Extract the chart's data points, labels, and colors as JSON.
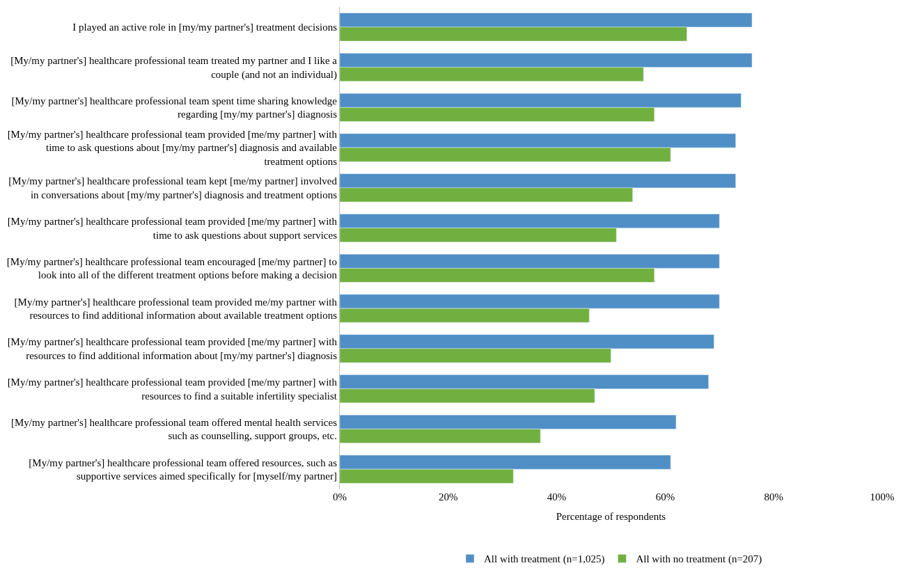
{
  "chart_data": {
    "type": "bar",
    "orientation": "horizontal",
    "xlabel": "Percentage of respondents",
    "categories": [
      "I played an active role in [my/my partner's] treatment decisions",
      "[My/my partner's] healthcare professional team treated my partner and I like a couple (and not an individual)",
      "[My/my partner's] healthcare professional team spent time sharing knowledge regarding [my/my partner's] diagnosis",
      "[My/my partner's] healthcare professional team provided [me/my partner] with time to ask questions about [my/my partner's] diagnosis and available treatment options",
      "[My/my partner's] healthcare professional team kept [me/my partner] involved in conversations about [my/my partner's] diagnosis and treatment options",
      "[My/my partner's] healthcare professional team provided [me/my partner] with time to ask questions about support services",
      "[My/my partner's] healthcare professional team encouraged [me/my partner] to look into all of the different treatment options before making a decision",
      "[My/my partner's] healthcare professional team provided me/my partner with resources to find additional information about available treatment options",
      "[My/my partner's] healthcare professional team provided [me/my partner] with resources to find additional information about [my/my partner's] diagnosis",
      "[My/my partner's] healthcare professional team provided [me/my partner] with resources to find a suitable infertility specialist",
      "[My/my partner's] healthcare professional team offered mental health services such as counselling, support groups, etc.",
      "[My/my partner's] healthcare professional team offered resources, such as supportive services aimed specifically for [myself/my partner]"
    ],
    "series": [
      {
        "name": "All with treatment (n=1,025)",
        "color": "#4f8fc6",
        "values": [
          76,
          76,
          74,
          73,
          73,
          70,
          70,
          70,
          69,
          68,
          62,
          61
        ]
      },
      {
        "name": "All with no treatment (n=207)",
        "color": "#70b040",
        "values": [
          64,
          56,
          58,
          61,
          54,
          51,
          58,
          46,
          50,
          47,
          37,
          32
        ]
      }
    ],
    "xlim": [
      0,
      100
    ],
    "xticks": [
      {
        "value": 0,
        "label": "0%"
      },
      {
        "value": 20,
        "label": "20%"
      },
      {
        "value": 40,
        "label": "40%"
      },
      {
        "value": 60,
        "label": "60%"
      },
      {
        "value": 80,
        "label": "80%"
      },
      {
        "value": 100,
        "label": "100%"
      }
    ],
    "grid": false,
    "legend": "bottom"
  }
}
